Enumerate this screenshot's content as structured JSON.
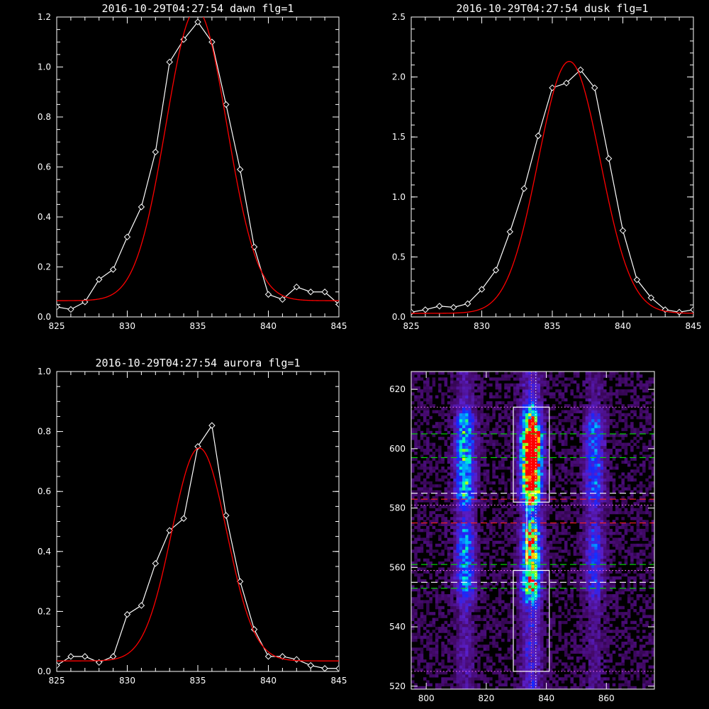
{
  "chart_data": [
    {
      "type": "line",
      "title": "2016-10-29T04:27:54 dawn flg=1",
      "xlim": [
        825,
        845
      ],
      "ylim": [
        0,
        1.2
      ],
      "xticks": [
        825,
        830,
        835,
        840,
        845
      ],
      "yticks": [
        0.0,
        0.2,
        0.4,
        0.6,
        0.8,
        1.0,
        1.2
      ],
      "ytick_labels": [
        "0.0",
        "0.2",
        "0.4",
        "0.6",
        "0.8",
        "1.0",
        "1.2"
      ],
      "x_minor": 1,
      "y_minor": 0.05,
      "series": [
        {
          "color": "#ffffff",
          "marker": "diamond",
          "x": [
            825,
            826,
            827,
            828,
            829,
            830,
            831,
            832,
            833,
            834,
            835,
            836,
            837,
            838,
            839,
            840,
            841,
            842,
            843,
            844,
            845
          ],
          "y": [
            0.04,
            0.03,
            0.06,
            0.15,
            0.19,
            0.32,
            0.44,
            0.66,
            1.02,
            1.11,
            1.18,
            1.1,
            0.85,
            0.59,
            0.28,
            0.09,
            0.07,
            0.12,
            0.1,
            0.1,
            0.05
          ]
        },
        {
          "color": "#ff0000",
          "fit": "gaussian",
          "baseline": 0.065,
          "amplitude": 1.165,
          "center": 834.9,
          "sigma": 2.15
        }
      ]
    },
    {
      "type": "line",
      "title": "2016-10-29T04:27:54 dusk flg=1",
      "xlim": [
        825,
        845
      ],
      "ylim": [
        0,
        2.5
      ],
      "xticks": [
        825,
        830,
        835,
        840,
        845
      ],
      "yticks": [
        0.0,
        0.5,
        1.0,
        1.5,
        2.0,
        2.5
      ],
      "ytick_labels": [
        "0.0",
        "0.5",
        "1.0",
        "1.5",
        "2.0",
        "2.5"
      ],
      "x_minor": 1,
      "y_minor": 0.1,
      "series": [
        {
          "color": "#ffffff",
          "marker": "diamond",
          "x": [
            825,
            826,
            827,
            828,
            829,
            830,
            831,
            832,
            833,
            834,
            835,
            836,
            837,
            838,
            839,
            840,
            841,
            842,
            843,
            844,
            845
          ],
          "y": [
            0.04,
            0.06,
            0.09,
            0.08,
            0.11,
            0.23,
            0.39,
            0.71,
            1.07,
            1.51,
            1.91,
            1.95,
            2.06,
            1.91,
            1.32,
            0.72,
            0.31,
            0.16,
            0.06,
            0.04,
            0.06
          ]
        },
        {
          "color": "#ff0000",
          "fit": "gaussian",
          "baseline": 0.03,
          "amplitude": 2.1,
          "center": 836.2,
          "sigma": 2.2
        }
      ]
    },
    {
      "type": "line",
      "title": "2016-10-29T04:27:54 aurora flg=1",
      "xlim": [
        825,
        845
      ],
      "ylim": [
        0,
        1.0
      ],
      "xticks": [
        825,
        830,
        835,
        840,
        845
      ],
      "yticks": [
        0.0,
        0.2,
        0.4,
        0.6,
        0.8,
        1.0
      ],
      "ytick_labels": [
        "0.0",
        "0.2",
        "0.4",
        "0.6",
        "0.8",
        "1.0"
      ],
      "x_minor": 1,
      "y_minor": 0.05,
      "series": [
        {
          "color": "#ffffff",
          "marker": "diamond",
          "x": [
            825,
            826,
            827,
            828,
            829,
            830,
            831,
            832,
            833,
            834,
            835,
            836,
            837,
            838,
            839,
            840,
            841,
            842,
            843,
            844,
            845
          ],
          "y": [
            0.02,
            0.05,
            0.05,
            0.03,
            0.05,
            0.19,
            0.22,
            0.36,
            0.47,
            0.51,
            0.75,
            0.82,
            0.52,
            0.3,
            0.14,
            0.05,
            0.05,
            0.04,
            0.02,
            0.01,
            0.01
          ]
        },
        {
          "color": "#ff0000",
          "fit": "gaussian",
          "baseline": 0.035,
          "amplitude": 0.71,
          "center": 835.1,
          "sigma": 1.95
        }
      ]
    },
    {
      "type": "heatmap",
      "title": "",
      "xlim": [
        795,
        876
      ],
      "ylim": [
        519,
        626
      ],
      "xticks": [
        800,
        820,
        840,
        860
      ],
      "yticks": [
        520,
        540,
        560,
        580,
        600,
        620
      ],
      "colormap": "rainbow",
      "emission_columns": [
        {
          "x": 813,
          "half_width": 4,
          "strength": 0.55
        },
        {
          "x": 835,
          "half_width": 4,
          "strength": 1.0
        },
        {
          "x": 856,
          "half_width": 4,
          "strength": 0.38
        }
      ],
      "emission_bands": [
        {
          "y_min": 583,
          "y_max": 610,
          "strength": 1.0
        },
        {
          "y_min": 552,
          "y_max": 573,
          "strength": 0.75
        }
      ],
      "overlays": {
        "boxes": [
          {
            "x_min": 829,
            "x_max": 841,
            "y_min": 582,
            "y_max": 614,
            "color": "#ffffff"
          },
          {
            "x_min": 829,
            "x_max": 841,
            "y_min": 525,
            "y_max": 559,
            "color": "#ffffff"
          }
        ],
        "center_lines": [
          {
            "x": 833.5,
            "color": "#ffffff",
            "style": "solid"
          },
          {
            "x": 835,
            "color": "#ff7777",
            "style": "dotted"
          },
          {
            "x": 836.5,
            "color": "#ffffff",
            "style": "dotted"
          }
        ],
        "h_lines": [
          {
            "y": 614,
            "color": "#ff77ff",
            "style": "dotted"
          },
          {
            "y": 605,
            "color": "#00dd00",
            "style": "dashed"
          },
          {
            "y": 597,
            "color": "#00dd00",
            "style": "dashed"
          },
          {
            "y": 585,
            "color": "#ffffff",
            "style": "dashed"
          },
          {
            "y": 583,
            "color": "#ff2222",
            "style": "dashed"
          },
          {
            "y": 581,
            "color": "#ff77ff",
            "style": "dotted"
          },
          {
            "y": 575,
            "color": "#ff2222",
            "style": "dashed"
          },
          {
            "y": 561,
            "color": "#00dd00",
            "style": "dashed"
          },
          {
            "y": 559,
            "color": "#ff77ff",
            "style": "dotted"
          },
          {
            "y": 555,
            "color": "#ffffff",
            "style": "dashed"
          },
          {
            "y": 553,
            "color": "#00dd00",
            "style": "dashed"
          },
          {
            "y": 525,
            "color": "#ff77ff",
            "style": "dotted"
          }
        ]
      }
    }
  ]
}
